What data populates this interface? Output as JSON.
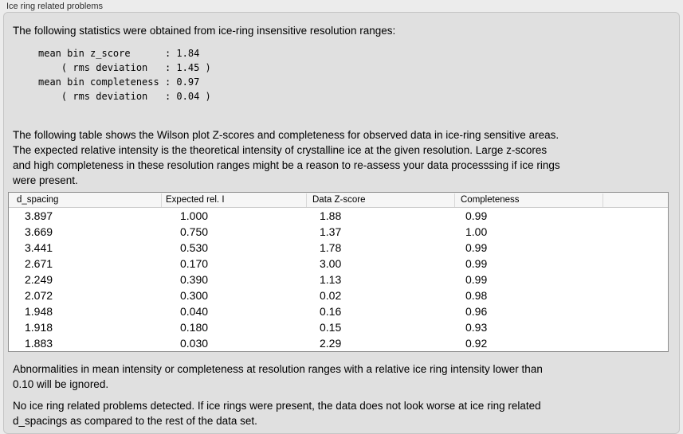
{
  "panel": {
    "title": "Ice ring related problems",
    "intro": "The following statistics were obtained from ice-ring insensitive resolution ranges:",
    "stats_block": "mean bin z_score      : 1.84\n    ( rms deviation   : 1.45 )\nmean bin completeness : 0.97\n    ( rms deviation   : 0.04 )",
    "stats": {
      "mean_bin_z_score": "1.84",
      "z_score_rms_deviation": "1.45",
      "mean_bin_completeness": "0.97",
      "completeness_rms_deviation": "0.04"
    },
    "table_description": "The following table shows the Wilson plot Z-scores and completeness for observed data in ice-ring sensitive areas.\nThe expected relative intensity is the theoretical intensity of crystalline ice at the given resolution. Large z-scores\nand high completeness in these resolution ranges might be a reason to re-assess your data processsing if ice rings\nwere present.",
    "note_abnormalities": "Abnormalities in mean intensity or completeness at resolution ranges with a relative ice ring intensity lower than\n0.10 will be ignored.",
    "conclusion": "No ice ring related problems detected. If ice rings were present, the data does not look worse at ice ring related\nd_spacings as compared to the rest of the data set."
  },
  "table": {
    "headers": [
      "d_spacing",
      "Expected rel. I",
      "Data Z-score",
      "Completeness",
      ""
    ],
    "rows": [
      [
        "3.897",
        "1.000",
        "1.88",
        "0.99"
      ],
      [
        "3.669",
        "0.750",
        "1.37",
        "1.00"
      ],
      [
        "3.441",
        "0.530",
        "1.78",
        "0.99"
      ],
      [
        "2.671",
        "0.170",
        "3.00",
        "0.99"
      ],
      [
        "2.249",
        "0.390",
        "1.13",
        "0.99"
      ],
      [
        "2.072",
        "0.300",
        "0.02",
        "0.98"
      ],
      [
        "1.948",
        "0.040",
        "0.16",
        "0.96"
      ],
      [
        "1.918",
        "0.180",
        "0.15",
        "0.93"
      ],
      [
        "1.883",
        "0.030",
        "2.29",
        "0.92"
      ]
    ]
  },
  "colors": {
    "window_background": "#ececec",
    "panel_background": "#e0e0e0",
    "panel_border": "#c6c6c6",
    "table_background": "#ffffff",
    "table_border": "#8e8e8e",
    "header_background": "#f6f6f6",
    "text": "#000000"
  }
}
